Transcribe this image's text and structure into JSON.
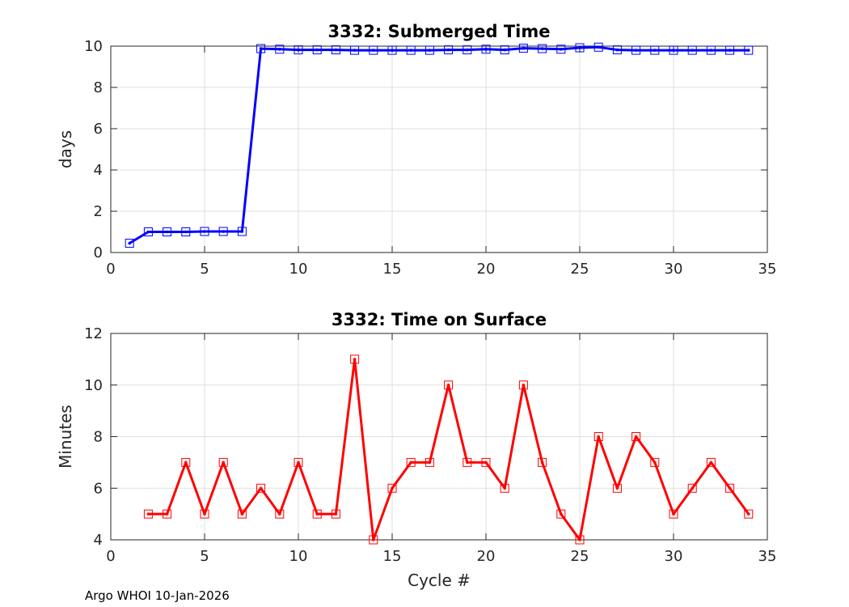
{
  "footer": "Argo WHOI 10-Jan-2026",
  "chart_data": [
    {
      "type": "line",
      "title": "3332: Submerged Time",
      "xlabel": "",
      "ylabel": "days",
      "xlim": [
        0,
        35
      ],
      "ylim": [
        0,
        10
      ],
      "xticks": [
        0,
        5,
        10,
        15,
        20,
        25,
        30,
        35
      ],
      "yticks": [
        0,
        2,
        4,
        6,
        8,
        10
      ],
      "grid": true,
      "series": [
        {
          "color": "#0000ff",
          "marker": "square",
          "x": [
            1,
            2,
            3,
            4,
            5,
            6,
            7,
            8,
            9,
            10,
            11,
            12,
            13,
            14,
            15,
            16,
            17,
            18,
            19,
            20,
            21,
            22,
            23,
            24,
            25,
            26,
            27,
            28,
            29,
            30,
            31,
            32,
            33,
            34
          ],
          "y": [
            0.45,
            1.0,
            1.0,
            1.0,
            1.02,
            1.02,
            1.02,
            9.88,
            9.85,
            9.82,
            9.82,
            9.82,
            9.8,
            9.8,
            9.8,
            9.8,
            9.8,
            9.82,
            9.82,
            9.85,
            9.82,
            9.9,
            9.88,
            9.85,
            9.92,
            9.95,
            9.82,
            9.8,
            9.8,
            9.8,
            9.8,
            9.8,
            9.8,
            9.8
          ]
        }
      ]
    },
    {
      "type": "line",
      "title": "3332: Time on Surface",
      "xlabel": "Cycle #",
      "ylabel": "Minutes",
      "xlim": [
        0,
        35
      ],
      "ylim": [
        4,
        12
      ],
      "xticks": [
        0,
        5,
        10,
        15,
        20,
        25,
        30,
        35
      ],
      "yticks": [
        4,
        6,
        8,
        10,
        12
      ],
      "grid": true,
      "series": [
        {
          "color": "#ff0000",
          "marker": "square",
          "x": [
            2,
            3,
            4,
            5,
            6,
            7,
            8,
            9,
            10,
            11,
            12,
            13,
            14,
            15,
            16,
            17,
            18,
            19,
            20,
            21,
            22,
            23,
            24,
            25,
            26,
            27,
            28,
            29,
            30,
            31,
            32,
            33,
            34
          ],
          "y": [
            5,
            5,
            7,
            5,
            7,
            5,
            6,
            5,
            7,
            5,
            5,
            11,
            4,
            6,
            7,
            7,
            10,
            7,
            7,
            6,
            10,
            7,
            5,
            4,
            8,
            6,
            8,
            7,
            5,
            6,
            7,
            6,
            5
          ]
        }
      ]
    }
  ]
}
